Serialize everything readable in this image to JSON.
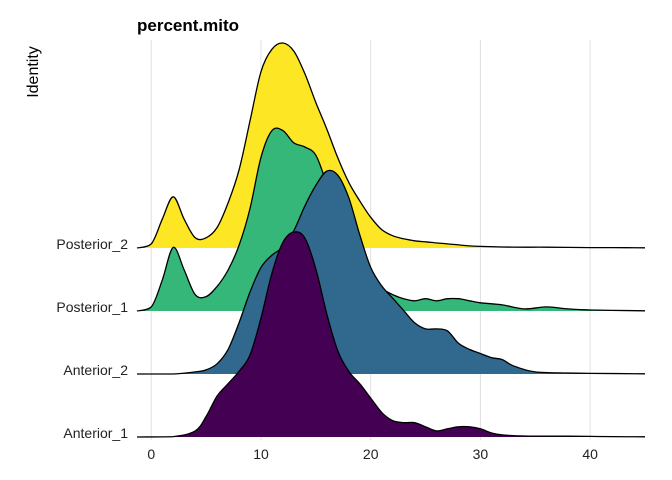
{
  "chart_data": {
    "type": "ridgeline",
    "title": "percent.mito",
    "xlabel": "",
    "ylabel": "Identity",
    "xlim": [
      -1.3,
      45
    ],
    "x_ticks": [
      0,
      10,
      20,
      30,
      40
    ],
    "grid": "vertical major lines",
    "categories": [
      "Anterior_1",
      "Anterior_2",
      "Posterior_1",
      "Posterior_2"
    ],
    "series": [
      {
        "name": "Anterior_1",
        "color": "#440154",
        "x": [
          -1.3,
          2,
          4,
          5,
          6,
          7,
          8,
          9,
          10,
          11,
          12,
          13,
          14,
          15,
          16,
          17,
          18,
          19,
          20,
          21,
          22,
          23,
          24,
          25,
          26,
          27,
          28,
          29,
          30,
          31,
          32,
          34,
          36,
          38,
          40,
          42,
          45
        ],
        "values": [
          0,
          0.002,
          0.03,
          0.1,
          0.2,
          0.26,
          0.32,
          0.4,
          0.58,
          0.8,
          0.95,
          1.0,
          0.97,
          0.82,
          0.6,
          0.42,
          0.32,
          0.26,
          0.19,
          0.12,
          0.08,
          0.07,
          0.07,
          0.05,
          0.03,
          0.04,
          0.05,
          0.05,
          0.04,
          0.02,
          0.01,
          0.005,
          0.004,
          0.004,
          0.003,
          0.002,
          0.001
        ]
      },
      {
        "name": "Anterior_2",
        "color": "#31688e",
        "x": [
          -1.3,
          2,
          4,
          5,
          6,
          7,
          8,
          9,
          10,
          11,
          12,
          13,
          14,
          15,
          16,
          17,
          18,
          19,
          20,
          21,
          22,
          23,
          24,
          25,
          26,
          27,
          28,
          29,
          30,
          31,
          32,
          33,
          35,
          38,
          40,
          45
        ],
        "values": [
          0,
          0,
          0.01,
          0.02,
          0.05,
          0.12,
          0.25,
          0.4,
          0.52,
          0.58,
          0.62,
          0.7,
          0.82,
          0.92,
          0.99,
          0.97,
          0.86,
          0.68,
          0.52,
          0.43,
          0.37,
          0.31,
          0.25,
          0.22,
          0.22,
          0.21,
          0.15,
          0.12,
          0.1,
          0.08,
          0.07,
          0.04,
          0.01,
          0.005,
          0.003,
          0.001
        ]
      },
      {
        "name": "Posterior_1",
        "color": "#35b779",
        "x": [
          -1.3,
          0,
          1,
          2,
          3,
          4,
          5,
          6,
          7,
          8,
          9,
          10,
          11,
          12,
          13,
          14,
          15,
          16,
          17,
          18,
          19,
          20,
          21,
          22,
          23,
          24,
          25,
          26,
          27,
          28,
          29,
          30,
          32,
          34,
          36,
          38,
          40,
          42,
          45
        ],
        "values": [
          0,
          0.02,
          0.15,
          0.31,
          0.2,
          0.08,
          0.07,
          0.12,
          0.2,
          0.32,
          0.5,
          0.75,
          0.88,
          0.88,
          0.82,
          0.8,
          0.76,
          0.62,
          0.48,
          0.36,
          0.25,
          0.16,
          0.11,
          0.08,
          0.06,
          0.05,
          0.06,
          0.05,
          0.06,
          0.06,
          0.05,
          0.04,
          0.03,
          0.01,
          0.02,
          0.01,
          0.005,
          0.003,
          0.001
        ]
      },
      {
        "name": "Posterior_2",
        "color": "#fde725",
        "x": [
          -1.3,
          0,
          1,
          2,
          3,
          4,
          5,
          6,
          7,
          8,
          9,
          10,
          11,
          12,
          13,
          14,
          15,
          16,
          17,
          18,
          19,
          20,
          21,
          22,
          23,
          24,
          25,
          26,
          27,
          28,
          29,
          30,
          32,
          34,
          36,
          38,
          40,
          42,
          45
        ],
        "values": [
          0,
          0.02,
          0.14,
          0.25,
          0.14,
          0.05,
          0.05,
          0.1,
          0.22,
          0.38,
          0.62,
          0.86,
          0.97,
          1.0,
          0.96,
          0.85,
          0.71,
          0.58,
          0.44,
          0.32,
          0.23,
          0.15,
          0.09,
          0.06,
          0.045,
          0.035,
          0.03,
          0.025,
          0.02,
          0.015,
          0.01,
          0.008,
          0.005,
          0.004,
          0.004,
          0.003,
          0.002,
          0.002,
          0.001
        ]
      }
    ]
  }
}
